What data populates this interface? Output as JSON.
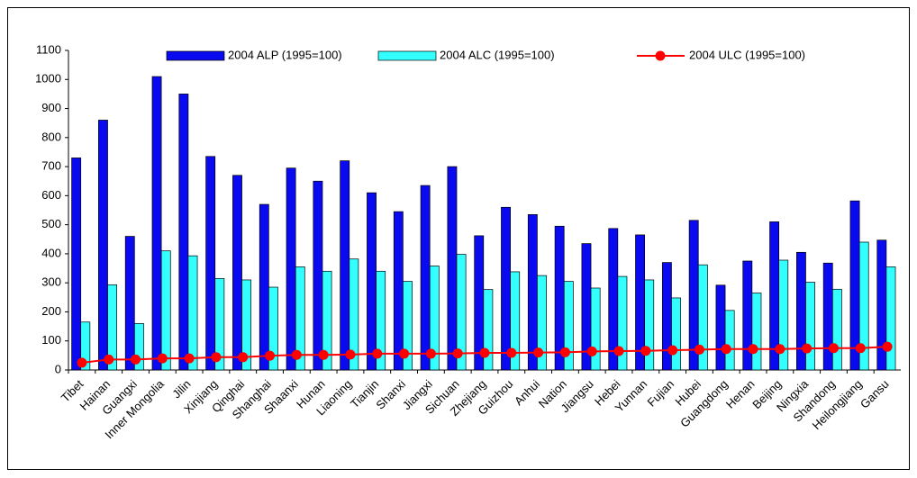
{
  "chart_data": {
    "type": "bar",
    "categories": [
      "Tibet",
      "Hainan",
      "Guangxi",
      "Inner Mongolia",
      "Jilin",
      "Xinjiang",
      "Qinghai",
      "Shanghai",
      "Shaanxi",
      "Hunan",
      "Liaoning",
      "Tianjin",
      "Shanxi",
      "Jiangxi",
      "Sichuan",
      "Zhejiang",
      "Guizhou",
      "Anhui",
      "Nation",
      "Jiangsu",
      "Hebei",
      "Yunnan",
      "Fujian",
      "Hubei",
      "Guangdong",
      "Henan",
      "Beijing",
      "Ningxia",
      "Shandong",
      "Heilongjiang",
      "Gansu"
    ],
    "series": [
      {
        "name": "2004 ALP (1995=100)",
        "type": "bar",
        "color": "#0a0af0",
        "values": [
          730,
          860,
          460,
          1010,
          950,
          735,
          670,
          570,
          695,
          650,
          720,
          610,
          545,
          635,
          700,
          462,
          560,
          535,
          495,
          435,
          487,
          465,
          370,
          515,
          292,
          375,
          510,
          405,
          368,
          582,
          447
        ]
      },
      {
        "name": "2004 ALC (1995=100)",
        "type": "bar",
        "color": "#33ffff",
        "values": [
          165,
          293,
          160,
          410,
          393,
          315,
          310,
          285,
          355,
          340,
          382,
          340,
          305,
          358,
          398,
          277,
          338,
          325,
          305,
          282,
          322,
          310,
          248,
          362,
          205,
          265,
          378,
          302,
          278,
          440,
          355
        ]
      },
      {
        "name": "2004 ULC (1995=100)",
        "type": "line",
        "color": "#ff0000",
        "values": [
          25,
          36,
          36,
          40,
          40,
          44,
          44,
          49,
          52,
          52,
          53,
          56,
          56,
          56,
          57,
          59,
          59,
          60,
          61,
          64,
          65,
          66,
          68,
          70,
          72,
          72,
          72,
          74,
          75,
          75,
          80
        ]
      }
    ],
    "ylim": [
      0,
      1100
    ],
    "yticks": [
      0,
      100,
      200,
      300,
      400,
      500,
      600,
      700,
      800,
      900,
      1000,
      1100
    ],
    "grid": false,
    "legend": "top"
  }
}
